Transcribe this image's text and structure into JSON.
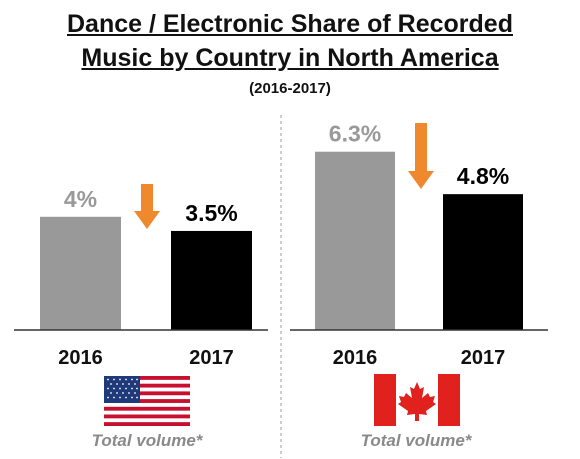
{
  "title_line1": "Dance / Electronic Share of Recorded",
  "title_line2": "Music by Country in North America",
  "subtitle": "(2016-2017)",
  "chart_data": [
    {
      "type": "bar",
      "categories": [
        "2016",
        "2017"
      ],
      "values": [
        4.0,
        3.5
      ],
      "value_labels": [
        "4%",
        "3.5%"
      ],
      "colors": [
        "#999999",
        "#000000"
      ],
      "label_colors": [
        "#999999",
        "#000000"
      ],
      "trend": "down",
      "country_flag": "us-flag",
      "footnote": "Total volume*"
    },
    {
      "type": "bar",
      "categories": [
        "2016",
        "2017"
      ],
      "values": [
        6.3,
        4.8
      ],
      "value_labels": [
        "6.3%",
        "4.8%"
      ],
      "colors": [
        "#999999",
        "#000000"
      ],
      "label_colors": [
        "#999999",
        "#000000"
      ],
      "trend": "down",
      "country_flag": "canada-flag",
      "footnote": "Total volume*"
    }
  ],
  "colors": {
    "arrow": "#f0892e",
    "divider": "#bdbdbd",
    "axis": "#333333"
  }
}
